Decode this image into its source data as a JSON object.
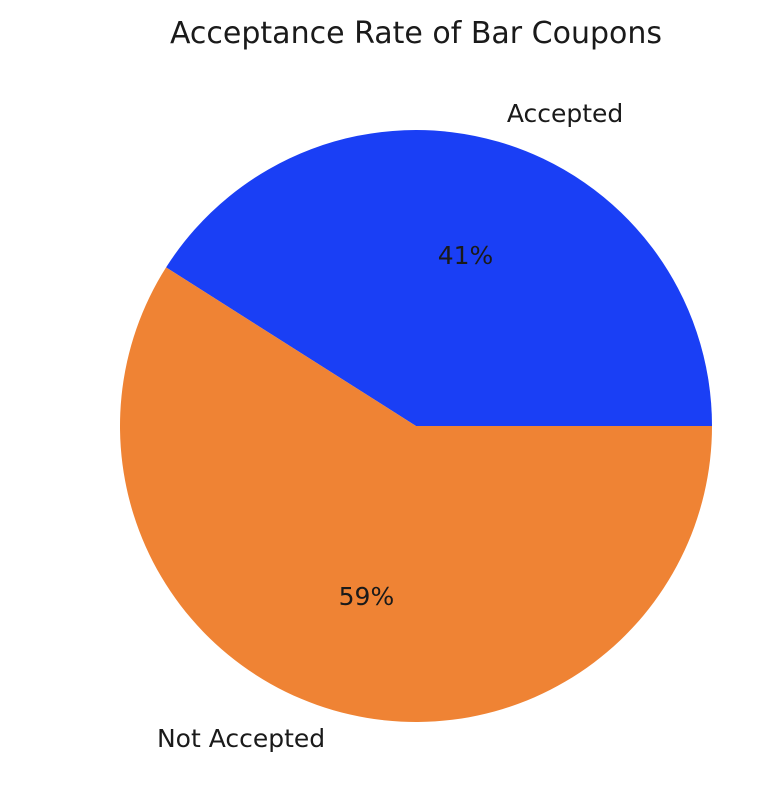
{
  "chart_data": {
    "type": "pie",
    "title": "Acceptance Rate of Bar Coupons",
    "slices": [
      {
        "label": "Accepted",
        "value": 41,
        "display": "41%",
        "color": "#1a3ff5"
      },
      {
        "label": "Not Accepted",
        "value": 59,
        "display": "59%",
        "color": "#ef8334"
      }
    ],
    "start_angle": "0° (3 o'clock)",
    "direction": "counterclockwise"
  }
}
